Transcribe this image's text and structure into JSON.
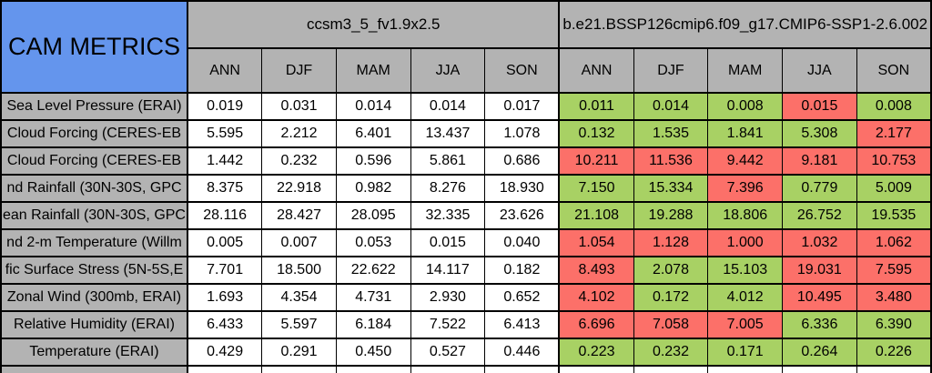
{
  "colors": {
    "header_blue": "#6495ED",
    "header_gray": "#B3B3B3",
    "better_green": "#A8D164",
    "worse_red": "#FC7069",
    "neutral_white": "#FFFFFF"
  },
  "chart_data": {
    "type": "table",
    "title": "CAM METRICS",
    "groups": [
      {
        "name": "ccsm3_5_fv1.9x2.5",
        "columns": [
          "ANN",
          "DJF",
          "MAM",
          "JJA",
          "SON"
        ]
      },
      {
        "name": "b.e21.BSSP126cmip6.f09_g17.CMIP6-SSP1-2.6.002",
        "columns": [
          "ANN",
          "DJF",
          "MAM",
          "JJA",
          "SON"
        ]
      }
    ],
    "color_coding_note": "model2 cells shaded green (better) or red (worse) vs model1",
    "rows": [
      {
        "label": "Sea Level Pressure (ERAI)",
        "model1": [
          "0.019",
          "0.031",
          "0.014",
          "0.014",
          "0.017"
        ],
        "model2": [
          "0.011",
          "0.014",
          "0.008",
          "0.015",
          "0.008"
        ],
        "model2_status": [
          "green",
          "green",
          "green",
          "red",
          "green"
        ]
      },
      {
        "label": "Cloud Forcing (CERES-EB",
        "model1": [
          "5.595",
          "2.212",
          "6.401",
          "13.437",
          "1.078"
        ],
        "model2": [
          "0.132",
          "1.535",
          "1.841",
          "5.308",
          "2.177"
        ],
        "model2_status": [
          "green",
          "green",
          "green",
          "green",
          "red"
        ]
      },
      {
        "label": "Cloud Forcing (CERES-EB",
        "model1": [
          "1.442",
          "0.232",
          "0.596",
          "5.861",
          "0.686"
        ],
        "model2": [
          "10.211",
          "11.536",
          "9.442",
          "9.181",
          "10.753"
        ],
        "model2_status": [
          "red",
          "red",
          "red",
          "red",
          "red"
        ]
      },
      {
        "label": "nd Rainfall (30N-30S, GPC",
        "model1": [
          "8.375",
          "22.918",
          "0.982",
          "8.276",
          "18.930"
        ],
        "model2": [
          "7.150",
          "15.334",
          "7.396",
          "0.779",
          "5.009"
        ],
        "model2_status": [
          "green",
          "green",
          "red",
          "green",
          "green"
        ]
      },
      {
        "label": "ean Rainfall (30N-30S, GPC",
        "model1": [
          "28.116",
          "28.427",
          "28.095",
          "32.335",
          "23.626"
        ],
        "model2": [
          "21.108",
          "19.288",
          "18.806",
          "26.752",
          "19.535"
        ],
        "model2_status": [
          "green",
          "green",
          "green",
          "green",
          "green"
        ]
      },
      {
        "label": "nd 2-m Temperature (Willm",
        "model1": [
          "0.005",
          "0.007",
          "0.053",
          "0.015",
          "0.040"
        ],
        "model2": [
          "1.054",
          "1.128",
          "1.000",
          "1.032",
          "1.062"
        ],
        "model2_status": [
          "red",
          "red",
          "red",
          "red",
          "red"
        ]
      },
      {
        "label": "fic Surface Stress (5N-5S,E",
        "model1": [
          "7.701",
          "18.500",
          "22.622",
          "14.117",
          "0.182"
        ],
        "model2": [
          "8.493",
          "2.078",
          "15.103",
          "19.031",
          "7.595"
        ],
        "model2_status": [
          "red",
          "green",
          "green",
          "red",
          "red"
        ]
      },
      {
        "label": "Zonal Wind (300mb, ERAI)",
        "model1": [
          "1.693",
          "4.354",
          "4.731",
          "2.930",
          "0.652"
        ],
        "model2": [
          "4.102",
          "0.172",
          "4.012",
          "10.495",
          "3.480"
        ],
        "model2_status": [
          "red",
          "green",
          "green",
          "red",
          "red"
        ]
      },
      {
        "label": "Relative Humidity (ERAI)",
        "model1": [
          "6.433",
          "5.597",
          "6.184",
          "7.522",
          "6.413"
        ],
        "model2": [
          "6.696",
          "7.058",
          "7.005",
          "6.336",
          "6.390"
        ],
        "model2_status": [
          "red",
          "red",
          "red",
          "green",
          "green"
        ]
      },
      {
        "label": "Temperature (ERAI)",
        "model1": [
          "0.429",
          "0.291",
          "0.450",
          "0.527",
          "0.446"
        ],
        "model2": [
          "0.223",
          "0.232",
          "0.171",
          "0.264",
          "0.226"
        ],
        "model2_status": [
          "green",
          "green",
          "green",
          "green",
          "green"
        ]
      }
    ]
  }
}
